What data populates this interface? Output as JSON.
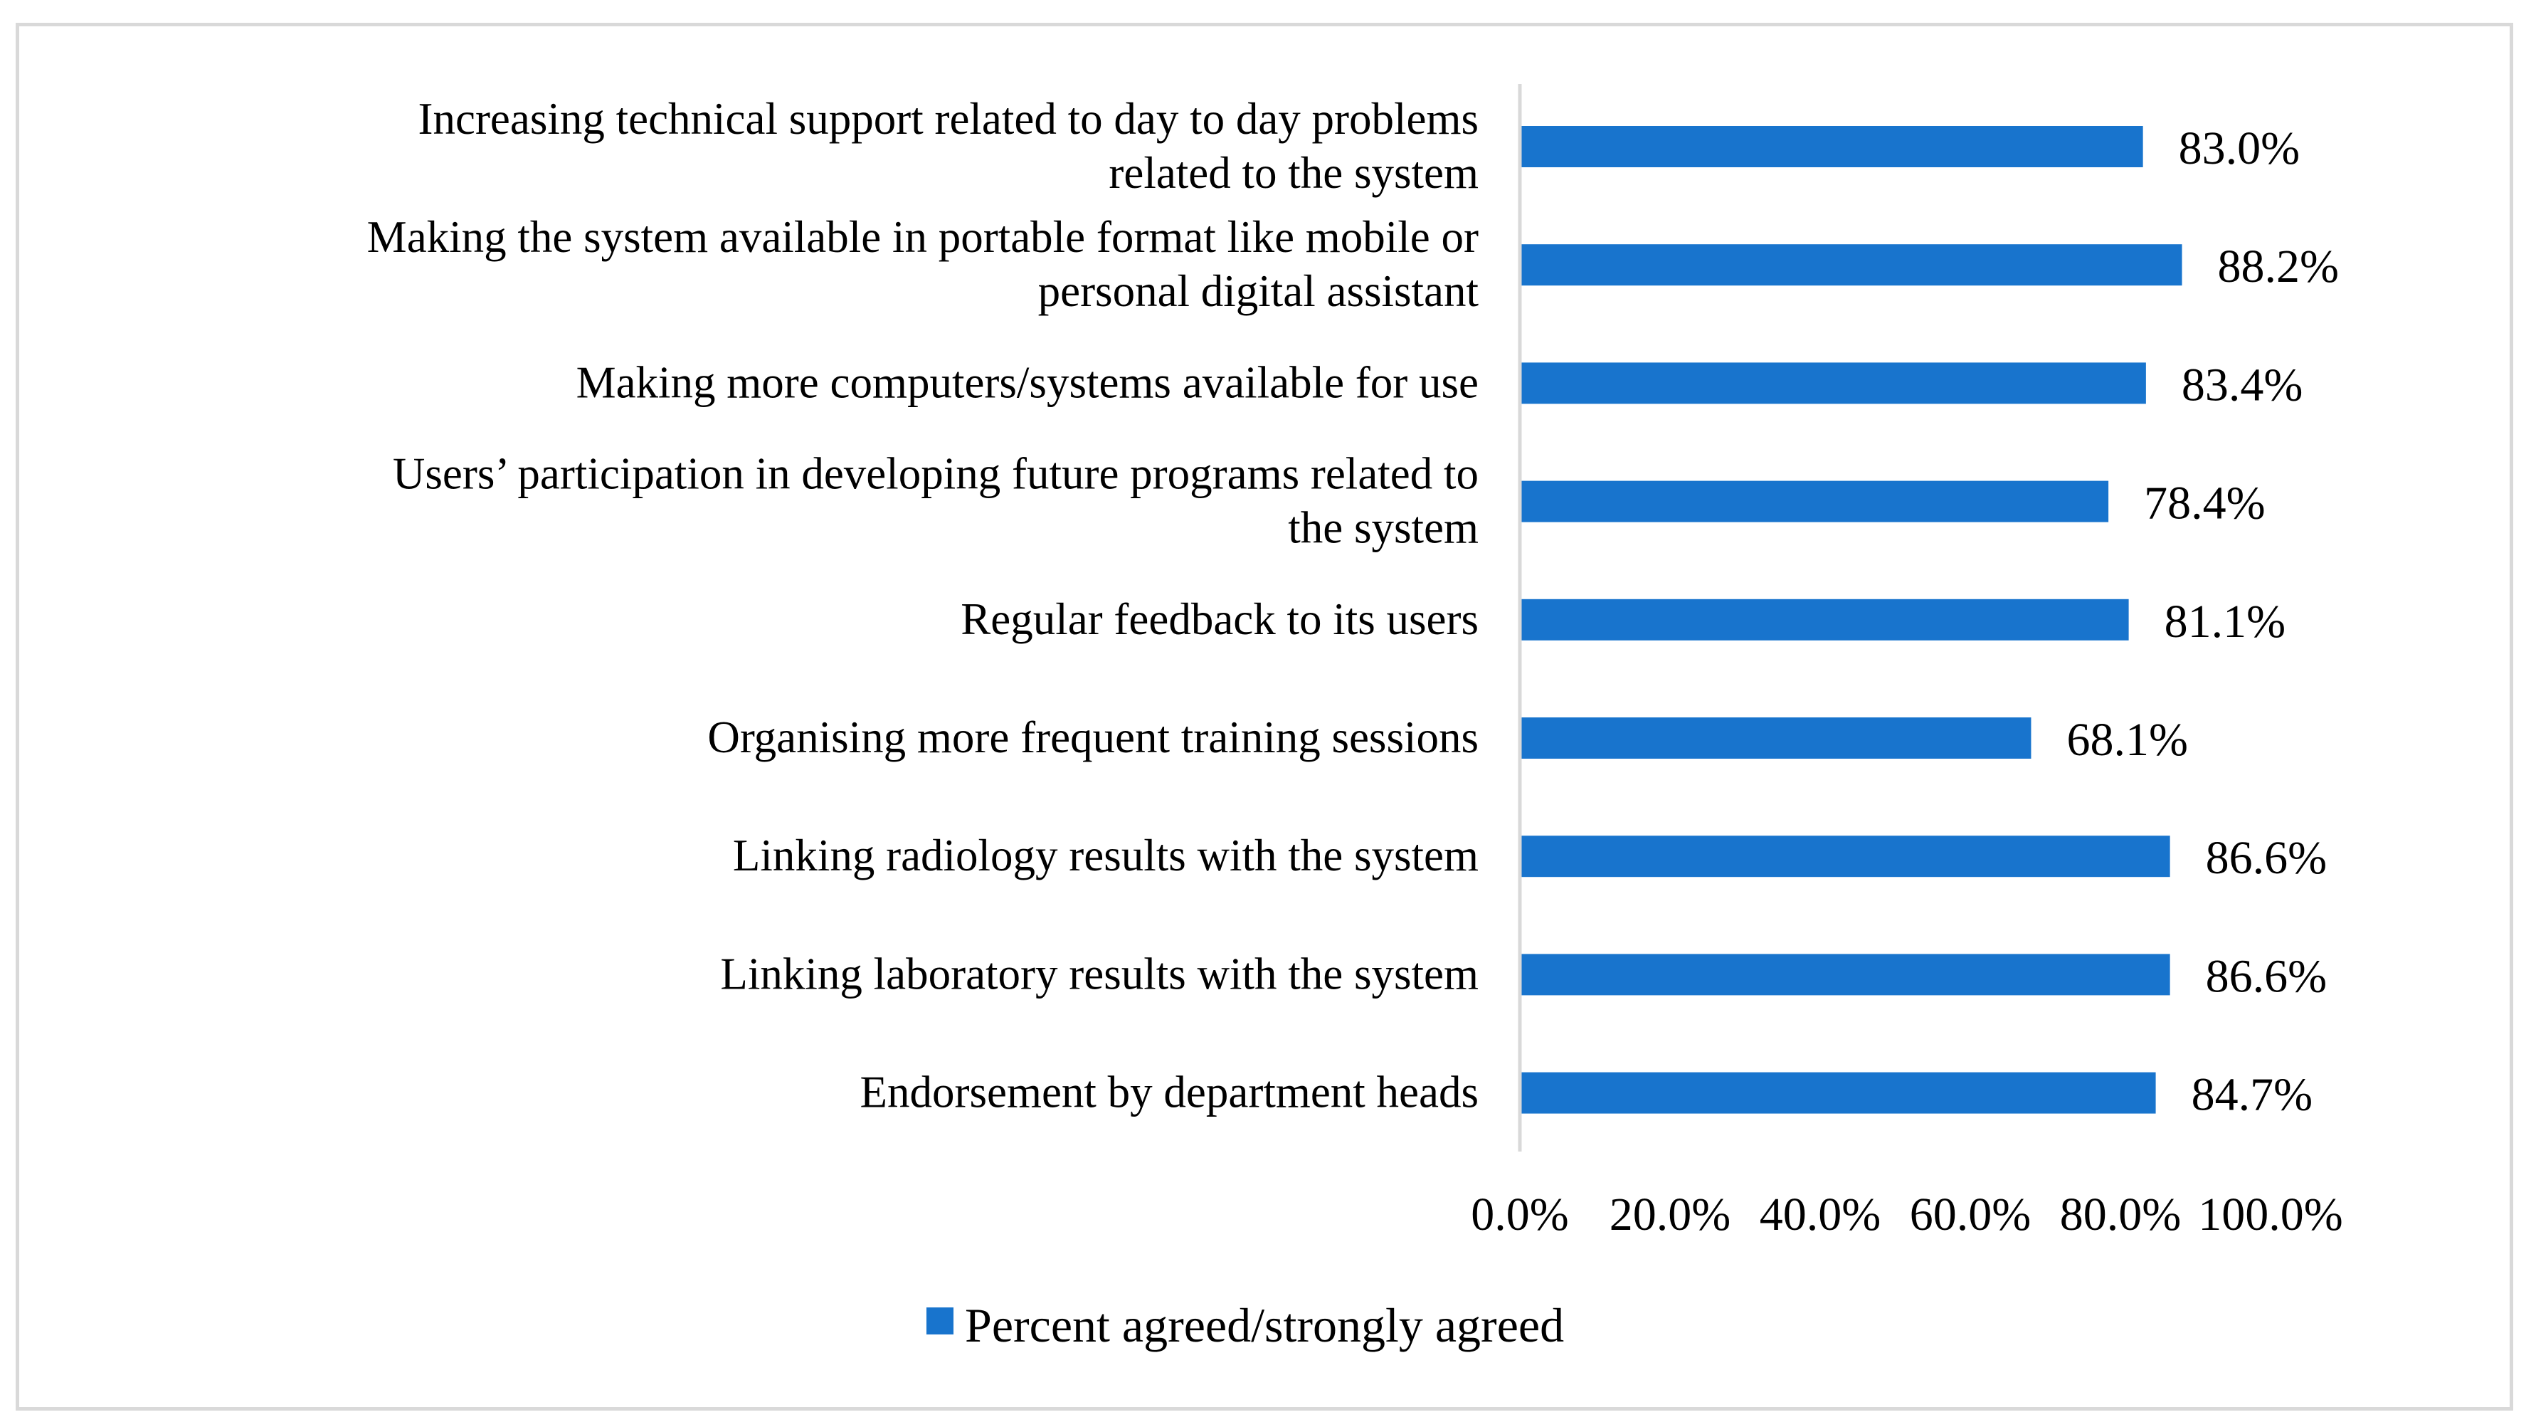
{
  "chart_data": {
    "type": "bar",
    "orientation": "horizontal",
    "title": "",
    "xlabel": "",
    "ylabel": "",
    "xlim": [
      0,
      100
    ],
    "grid": false,
    "legend_position": "bottom",
    "categories": [
      [
        "Increasing technical support related to day to day problems",
        "related to the system"
      ],
      [
        "Making the system available in portable format like mobile or",
        "personal digital assistant"
      ],
      [
        "Making more computers/systems available for use"
      ],
      [
        "Users’ participation in developing future programs related to",
        "the system"
      ],
      [
        "Regular feedback to its users"
      ],
      [
        "Organising more frequent training sessions"
      ],
      [
        "Linking radiology results with the system"
      ],
      [
        "Linking laboratory results with the system"
      ],
      [
        "Endorsement by department heads"
      ]
    ],
    "series": [
      {
        "name": "Percent agreed/strongly agreed",
        "color": "#1874CD",
        "values": [
          83.0,
          88.2,
          83.4,
          78.4,
          81.1,
          68.1,
          86.6,
          86.6,
          84.7
        ],
        "value_labels": [
          "83.0%",
          "88.2%",
          "83.4%",
          "78.4%",
          "81.1%",
          "68.1%",
          "86.6%",
          "86.6%",
          "84.7%"
        ]
      }
    ],
    "x_ticks": [
      0,
      20,
      40,
      60,
      80,
      100
    ],
    "x_tick_labels": [
      "0.0%",
      "20.0%",
      "40.0%",
      "60.0%",
      "80.0%",
      "100.0%"
    ],
    "axis_color": "#d9d9d9",
    "frame_color": "#d9d9d9"
  }
}
